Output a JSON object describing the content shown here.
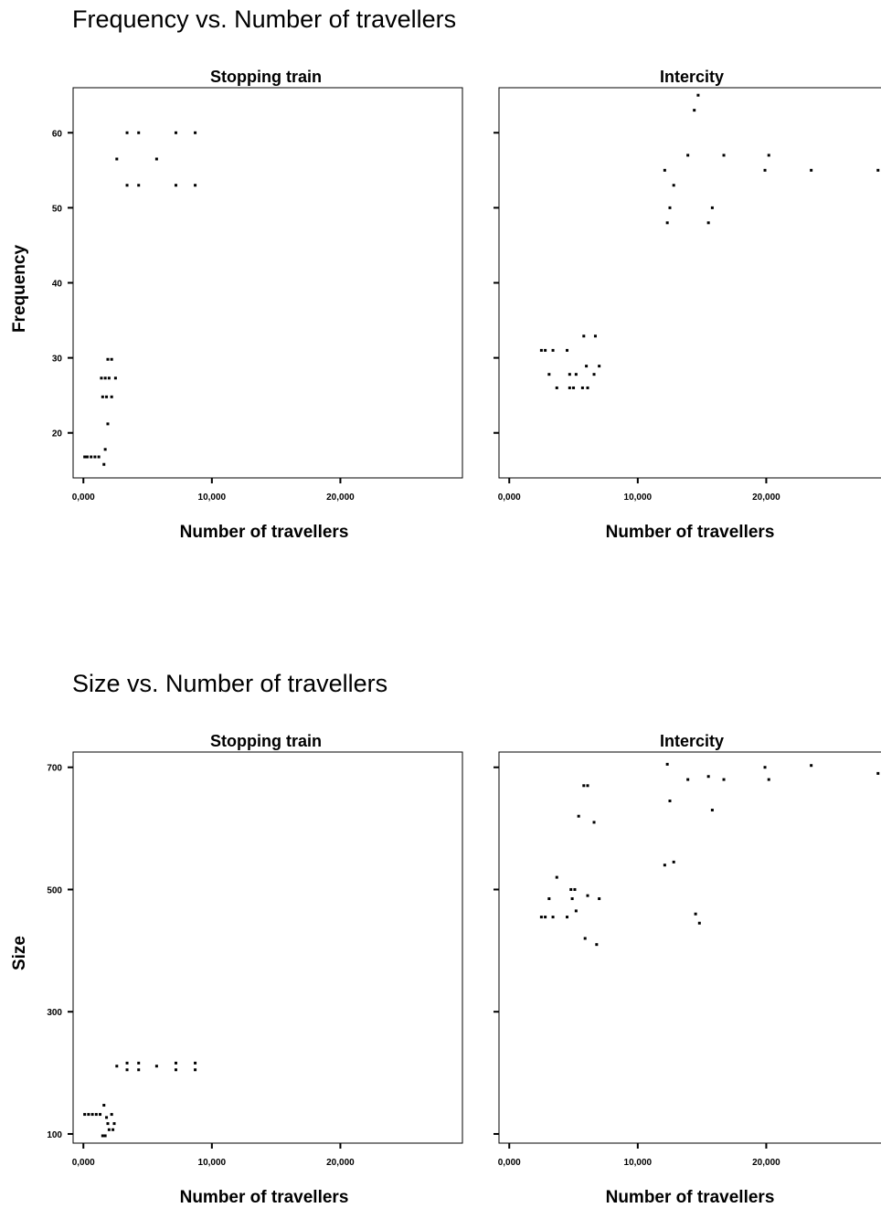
{
  "chart_data": [
    {
      "type": "scatter",
      "title": "Frequency vs. Number of travellers",
      "ylabel": "Frequency",
      "ylim": [
        14,
        66
      ],
      "yticks": [
        20,
        30,
        40,
        50,
        60
      ],
      "ytick_labels": [
        "20",
        "30",
        "40",
        "50",
        "60"
      ],
      "grid": false,
      "panels": [
        {
          "name": "Stopping train",
          "xlabel": "Number of travellers",
          "xlim": [
            -800,
            29500
          ],
          "xticks": [
            0,
            10000,
            20000
          ],
          "xtick_labels": [
            "0,000",
            "10,000",
            "20,000"
          ],
          "points": [
            {
              "x": 1200,
              "y": 16.8
            },
            {
              "x": 900,
              "y": 16.8
            },
            {
              "x": 600,
              "y": 16.8
            },
            {
              "x": 300,
              "y": 16.8
            },
            {
              "x": 100,
              "y": 16.8
            },
            {
              "x": 1600,
              "y": 15.8
            },
            {
              "x": 1700,
              "y": 17.8
            },
            {
              "x": 1900,
              "y": 21.2
            },
            {
              "x": 1500,
              "y": 24.8
            },
            {
              "x": 1800,
              "y": 24.8
            },
            {
              "x": 2200,
              "y": 24.8
            },
            {
              "x": 1400,
              "y": 27.3
            },
            {
              "x": 1700,
              "y": 27.3
            },
            {
              "x": 2000,
              "y": 27.3
            },
            {
              "x": 2500,
              "y": 27.3
            },
            {
              "x": 1900,
              "y": 29.8
            },
            {
              "x": 2200,
              "y": 29.8
            },
            {
              "x": 2600,
              "y": 56.5
            },
            {
              "x": 5700,
              "y": 56.5
            },
            {
              "x": 3400,
              "y": 60
            },
            {
              "x": 4300,
              "y": 60
            },
            {
              "x": 7200,
              "y": 60
            },
            {
              "x": 8700,
              "y": 60
            },
            {
              "x": 3400,
              "y": 53
            },
            {
              "x": 4300,
              "y": 53
            },
            {
              "x": 7200,
              "y": 53
            },
            {
              "x": 8700,
              "y": 53
            }
          ]
        },
        {
          "name": "Intercity",
          "xlabel": "Number of travellers",
          "xlim": [
            -800,
            29500
          ],
          "xticks": [
            0,
            10000,
            20000
          ],
          "xtick_labels": [
            "0,000",
            "10,000",
            "20,000"
          ],
          "points": [
            {
              "x": 2500,
              "y": 31
            },
            {
              "x": 2800,
              "y": 31
            },
            {
              "x": 3400,
              "y": 31
            },
            {
              "x": 4500,
              "y": 31
            },
            {
              "x": 3100,
              "y": 27.8
            },
            {
              "x": 4700,
              "y": 27.8
            },
            {
              "x": 5200,
              "y": 27.8
            },
            {
              "x": 6600,
              "y": 27.8
            },
            {
              "x": 3700,
              "y": 26
            },
            {
              "x": 4700,
              "y": 26
            },
            {
              "x": 5000,
              "y": 26
            },
            {
              "x": 5700,
              "y": 26
            },
            {
              "x": 6100,
              "y": 26
            },
            {
              "x": 6000,
              "y": 28.9
            },
            {
              "x": 7000,
              "y": 28.9
            },
            {
              "x": 5800,
              "y": 32.9
            },
            {
              "x": 6700,
              "y": 32.9
            },
            {
              "x": 12100,
              "y": 55
            },
            {
              "x": 12300,
              "y": 48
            },
            {
              "x": 12500,
              "y": 50
            },
            {
              "x": 12800,
              "y": 53
            },
            {
              "x": 13900,
              "y": 57
            },
            {
              "x": 14400,
              "y": 63
            },
            {
              "x": 14700,
              "y": 65
            },
            {
              "x": 15500,
              "y": 48
            },
            {
              "x": 15800,
              "y": 50
            },
            {
              "x": 16700,
              "y": 57
            },
            {
              "x": 19900,
              "y": 55
            },
            {
              "x": 20200,
              "y": 57
            },
            {
              "x": 23500,
              "y": 55
            },
            {
              "x": 28700,
              "y": 55
            }
          ]
        }
      ]
    },
    {
      "type": "scatter",
      "title": "Size vs. Number of travellers",
      "ylabel": "Size",
      "ylim": [
        85,
        725
      ],
      "yticks": [
        100,
        300,
        500,
        700
      ],
      "ytick_labels": [
        "100",
        "300",
        "500",
        "700"
      ],
      "grid": false,
      "panels": [
        {
          "name": "Stopping train",
          "xlabel": "Number of travellers",
          "xlim": [
            -800,
            29500
          ],
          "xticks": [
            0,
            10000,
            20000
          ],
          "xtick_labels": [
            "0,000",
            "10,000",
            "20,000"
          ],
          "points": [
            {
              "x": 100,
              "y": 132
            },
            {
              "x": 400,
              "y": 132
            },
            {
              "x": 700,
              "y": 132
            },
            {
              "x": 1000,
              "y": 132
            },
            {
              "x": 1300,
              "y": 132
            },
            {
              "x": 1500,
              "y": 97
            },
            {
              "x": 1700,
              "y": 97
            },
            {
              "x": 1600,
              "y": 147
            },
            {
              "x": 1800,
              "y": 127
            },
            {
              "x": 1900,
              "y": 117
            },
            {
              "x": 2000,
              "y": 107
            },
            {
              "x": 2200,
              "y": 132
            },
            {
              "x": 2400,
              "y": 117
            },
            {
              "x": 2300,
              "y": 107
            },
            {
              "x": 2600,
              "y": 211
            },
            {
              "x": 3400,
              "y": 205
            },
            {
              "x": 3400,
              "y": 216
            },
            {
              "x": 4300,
              "y": 205
            },
            {
              "x": 4300,
              "y": 216
            },
            {
              "x": 5700,
              "y": 211
            },
            {
              "x": 7200,
              "y": 205
            },
            {
              "x": 7200,
              "y": 216
            },
            {
              "x": 8700,
              "y": 205
            },
            {
              "x": 8700,
              "y": 216
            }
          ]
        },
        {
          "name": "Intercity",
          "xlabel": "Number of travellers",
          "xlim": [
            -800,
            29500
          ],
          "xticks": [
            0,
            10000,
            20000
          ],
          "xtick_labels": [
            "0,000",
            "10,000",
            "20,000"
          ],
          "points": [
            {
              "x": 2500,
              "y": 455
            },
            {
              "x": 2800,
              "y": 455
            },
            {
              "x": 3400,
              "y": 455
            },
            {
              "x": 4500,
              "y": 455
            },
            {
              "x": 3100,
              "y": 485
            },
            {
              "x": 3700,
              "y": 520
            },
            {
              "x": 4800,
              "y": 500
            },
            {
              "x": 5100,
              "y": 500
            },
            {
              "x": 4900,
              "y": 485
            },
            {
              "x": 5200,
              "y": 465
            },
            {
              "x": 5400,
              "y": 620
            },
            {
              "x": 5800,
              "y": 670
            },
            {
              "x": 6100,
              "y": 670
            },
            {
              "x": 6600,
              "y": 610
            },
            {
              "x": 6100,
              "y": 490
            },
            {
              "x": 7000,
              "y": 485
            },
            {
              "x": 5900,
              "y": 420
            },
            {
              "x": 6800,
              "y": 410
            },
            {
              "x": 12100,
              "y": 540
            },
            {
              "x": 12800,
              "y": 545
            },
            {
              "x": 12300,
              "y": 705
            },
            {
              "x": 12500,
              "y": 645
            },
            {
              "x": 13900,
              "y": 680
            },
            {
              "x": 14500,
              "y": 460
            },
            {
              "x": 14800,
              "y": 445
            },
            {
              "x": 15500,
              "y": 685
            },
            {
              "x": 15800,
              "y": 630
            },
            {
              "x": 16700,
              "y": 680
            },
            {
              "x": 19900,
              "y": 700
            },
            {
              "x": 20200,
              "y": 680
            },
            {
              "x": 23500,
              "y": 703
            },
            {
              "x": 28700,
              "y": 690
            }
          ]
        }
      ]
    }
  ]
}
